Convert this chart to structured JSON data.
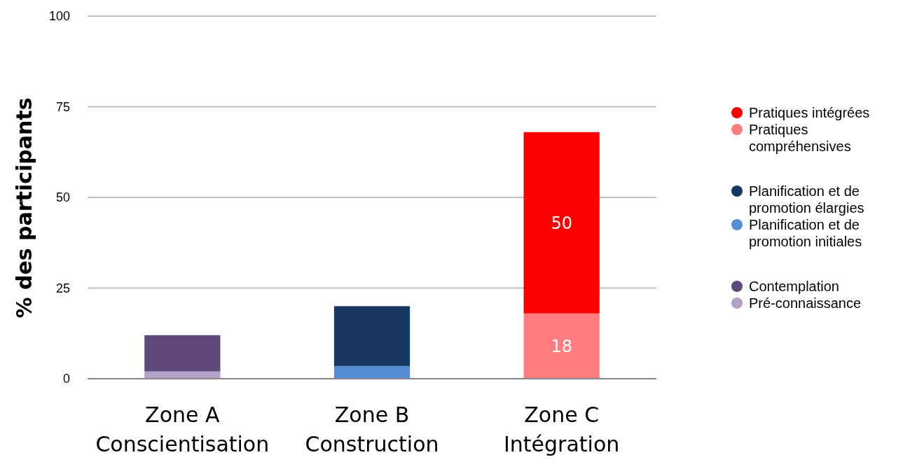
{
  "chart_data": {
    "type": "bar",
    "stacked": true,
    "ylabel": "% des participants",
    "categories": [
      "Zone A\nConscientisation",
      "Zone B\nConstruction",
      "Zone C\nIntégration"
    ],
    "ylim": [
      0,
      100
    ],
    "yticks": [
      0,
      25,
      50,
      75,
      100
    ],
    "grid": "y",
    "legend": "right",
    "series": [
      {
        "name": "Pré-connaissance",
        "color": "#b3a2c8",
        "values": [
          2,
          null,
          null
        ]
      },
      {
        "name": "Contemplation",
        "color": "#604a7b",
        "values": [
          10,
          null,
          null
        ]
      },
      {
        "name": "Planification et de promotion initiales",
        "color": "#558ed5",
        "values": [
          null,
          3.5,
          null
        ]
      },
      {
        "name": "Planification et de promotion élargies",
        "color": "#17375e",
        "values": [
          null,
          16.5,
          null
        ]
      },
      {
        "name": "Pratiques compréhensives",
        "color": "#ff7c80",
        "values": [
          null,
          null,
          18
        ],
        "value_labels": [
          null,
          null,
          "18"
        ]
      },
      {
        "name": "Pratiques intégrées",
        "color": "#ff0000",
        "values": [
          null,
          null,
          50
        ],
        "value_labels": [
          null,
          null,
          "50"
        ]
      }
    ]
  }
}
